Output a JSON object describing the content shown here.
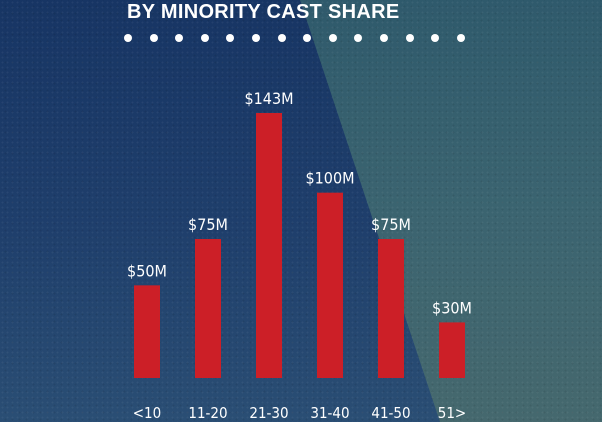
{
  "chart_data": {
    "type": "bar",
    "title": "BY MINORITY CAST SHARE",
    "categories": [
      "<10",
      "11-20",
      "21-30",
      "31-40",
      "41-50",
      "51>"
    ],
    "values": [
      50,
      75,
      143,
      100,
      75,
      30
    ],
    "value_labels": [
      "$50M",
      "$75M",
      "$143M",
      "$100M",
      "$75M",
      "$30M"
    ],
    "xlabel": "",
    "ylabel": "",
    "ylim": [
      0,
      143
    ],
    "grid": false,
    "bar_color": "#cc1f27"
  },
  "colors": {
    "background": "#1e3a66",
    "accent_overlay": "#3b6470",
    "text": "#ffffff"
  }
}
